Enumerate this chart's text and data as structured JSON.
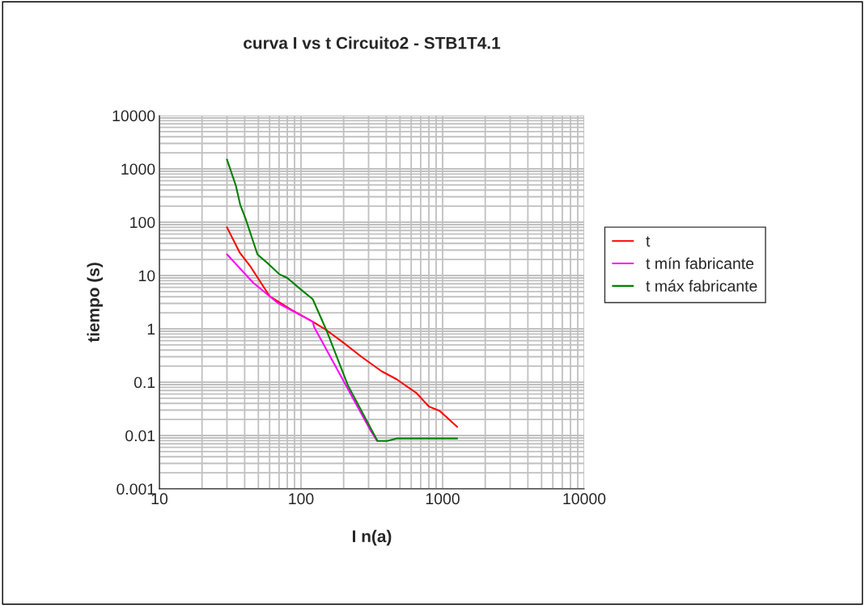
{
  "chart_data": {
    "type": "line",
    "title": "curva I vs t Circuito2 - STB1T4.1",
    "xlabel": "I n(a)",
    "ylabel": "tiempo (s)",
    "log": "xy",
    "grid": true,
    "legend": "right",
    "marker": "none",
    "xlim": [
      10,
      10000
    ],
    "xticks": [
      10,
      100,
      1000,
      10000
    ],
    "ylim": [
      0.001,
      10000
    ],
    "yticks": [
      0.001,
      0.01,
      0.1,
      1,
      10,
      100,
      1000,
      10000
    ],
    "series": [
      {
        "name": "t",
        "color": "#ff0000",
        "x": [
          30,
          37,
          44,
          60,
          85,
          121,
          151,
          196,
          267,
          371,
          472,
          656,
          800,
          953,
          1267
        ],
        "values": [
          80,
          26.6,
          14.7,
          4.1,
          2.3,
          1.36,
          0.95,
          0.57,
          0.3,
          0.16,
          0.114,
          0.062,
          0.035,
          0.029,
          0.0145
        ]
      },
      {
        "name": "t mín fabricante",
        "color": "#ff00ff",
        "x": [
          30,
          46,
          68.6,
          121,
          124,
          311,
          344
        ],
        "values": [
          25,
          7.3,
          3.05,
          1.36,
          1.07,
          0.0122,
          0.008
        ]
      },
      {
        "name": "t máx fabricante",
        "color": "#008000",
        "x": [
          30,
          34.7,
          37.2,
          40.5,
          49.3,
          58.9,
          70.2,
          80,
          99.5,
          121,
          151,
          214,
          347,
          405,
          472,
          1267
        ],
        "values": [
          1500,
          481,
          213,
          119,
          24.8,
          16.5,
          10.6,
          9.0,
          5.5,
          3.6,
          0.95,
          0.088,
          0.0079,
          0.0079,
          0.0088,
          0.0088
        ]
      }
    ]
  }
}
